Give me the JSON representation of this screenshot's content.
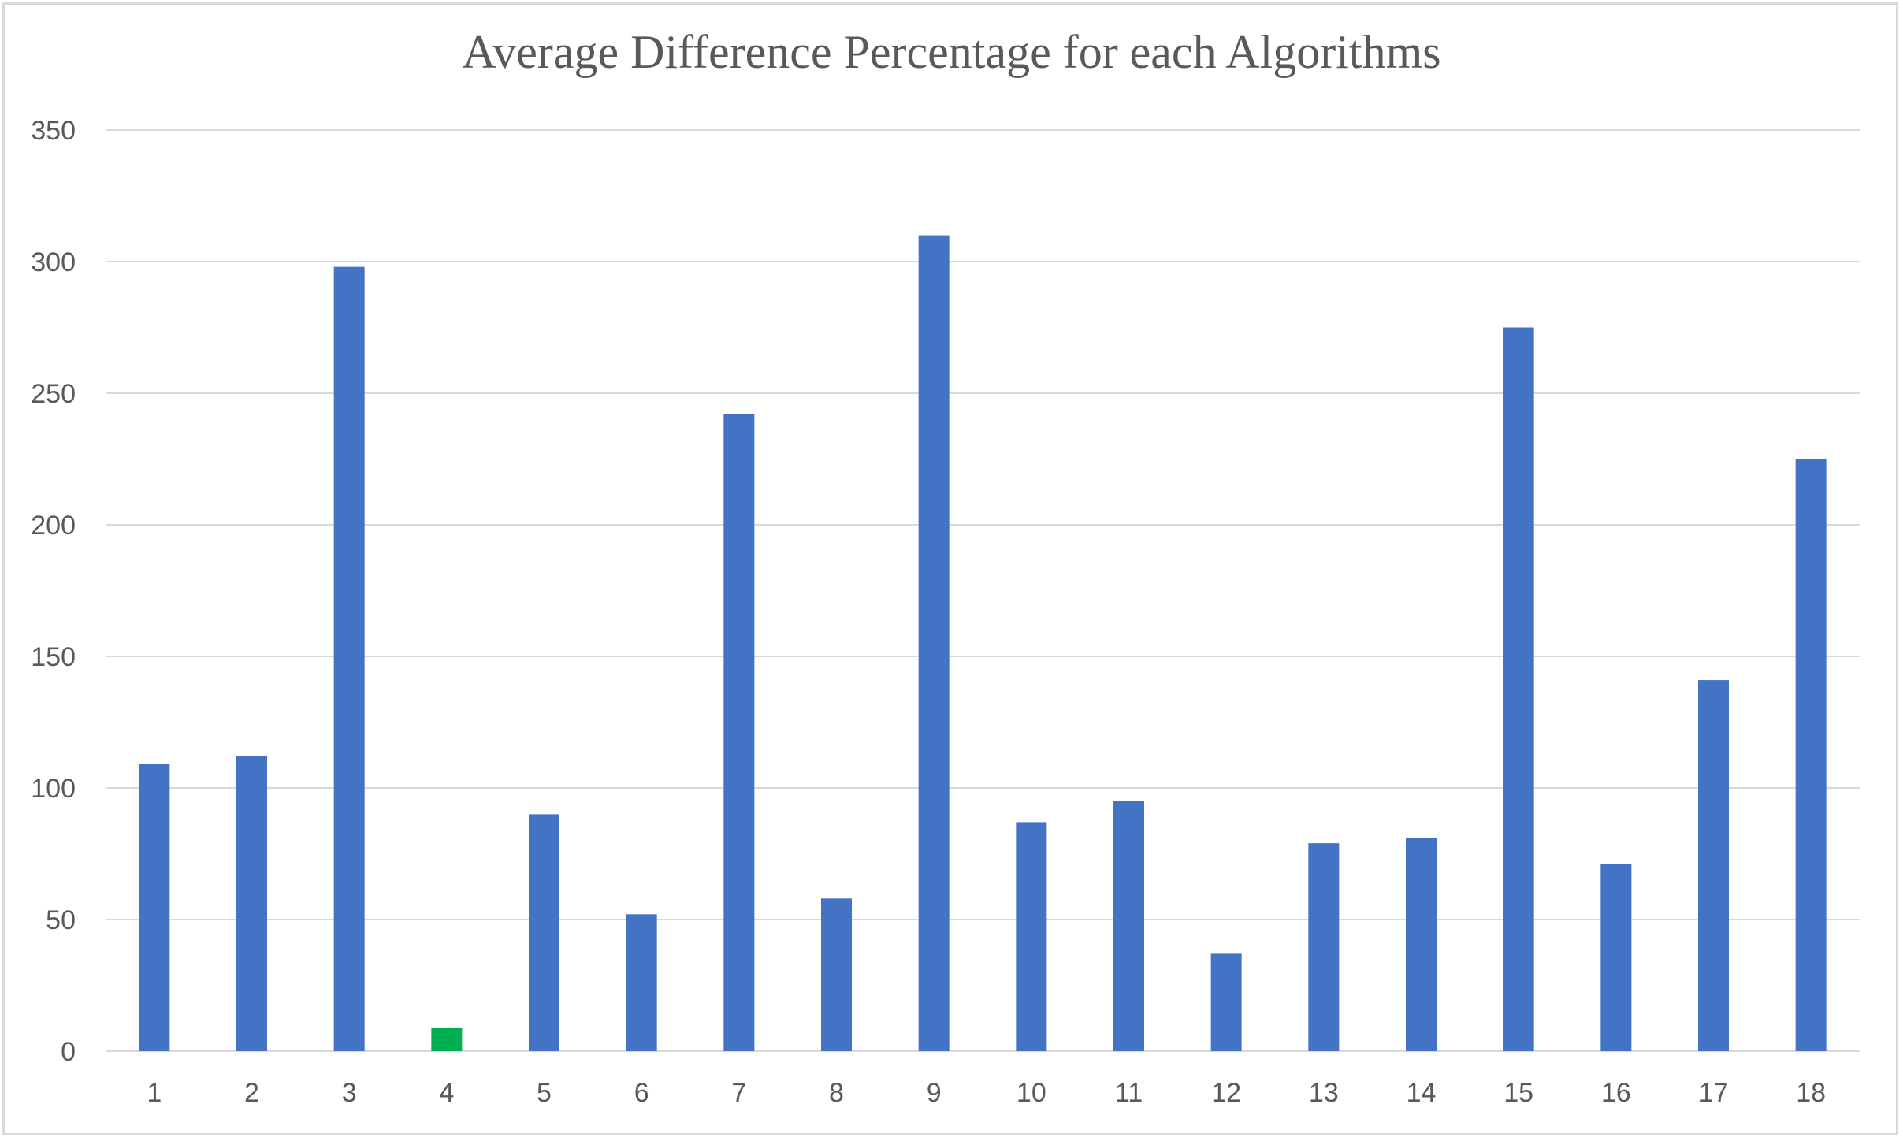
{
  "chart_data": {
    "type": "bar",
    "title": "Average Difference Percentage for each Algorithms",
    "xlabel": "",
    "ylabel": "",
    "categories": [
      "1",
      "2",
      "3",
      "4",
      "5",
      "6",
      "7",
      "8",
      "9",
      "10",
      "11",
      "12",
      "13",
      "14",
      "15",
      "16",
      "17",
      "18"
    ],
    "values": [
      109,
      112,
      298,
      9,
      90,
      52,
      242,
      58,
      310,
      87,
      95,
      37,
      79,
      81,
      275,
      71,
      141,
      225
    ],
    "ylim": [
      0,
      350
    ],
    "yticks": [
      "0",
      "50",
      "100",
      "150",
      "200",
      "250",
      "300",
      "350"
    ],
    "grid": true,
    "legend": "none",
    "colors": {
      "default_bar": "#4472c4",
      "highlight_bar": "#00b050",
      "gridline": "#d9d9d9",
      "text": "#595959"
    },
    "highlight_category": "4"
  }
}
